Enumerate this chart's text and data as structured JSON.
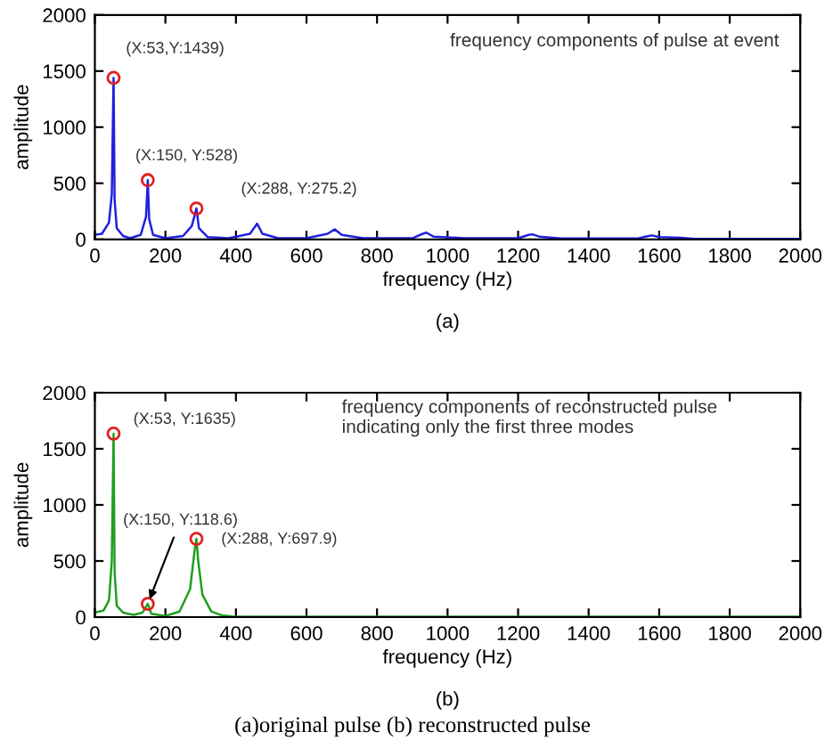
{
  "chart_data": [
    {
      "type": "line",
      "xlabel": "frequency (Hz)",
      "ylabel": "amplitude",
      "xlim": [
        0,
        2000
      ],
      "ylim": [
        0,
        2000
      ],
      "xticks": [
        0,
        200,
        400,
        600,
        800,
        1000,
        1200,
        1400,
        1600,
        1800,
        2000
      ],
      "yticks": [
        0,
        500,
        1000,
        1500,
        2000
      ],
      "grid": false,
      "legend": false,
      "series": [
        {
          "color": "#2020e0",
          "x": [
            0,
            20,
            40,
            48,
            53,
            56,
            62,
            80,
            100,
            130,
            145,
            150,
            154,
            165,
            200,
            250,
            275,
            288,
            295,
            320,
            380,
            440,
            460,
            475,
            520,
            600,
            660,
            680,
            700,
            760,
            900,
            930,
            940,
            960,
            1050,
            1200,
            1230,
            1240,
            1260,
            1320,
            1540,
            1570,
            1580,
            1600,
            1660,
            1700,
            2000
          ],
          "values": [
            40,
            50,
            150,
            400,
            1439,
            350,
            100,
            30,
            10,
            40,
            200,
            528,
            180,
            40,
            10,
            30,
            120,
            275.2,
            100,
            20,
            10,
            50,
            140,
            50,
            10,
            10,
            50,
            90,
            40,
            10,
            10,
            50,
            60,
            25,
            10,
            10,
            40,
            45,
            25,
            8,
            8,
            30,
            35,
            20,
            15,
            5,
            5
          ]
        },
        {
          "type": "scatter",
          "marker": "circle",
          "color": "#e02020",
          "x": [
            53,
            150,
            288
          ],
          "values": [
            1439,
            528,
            275.2
          ]
        }
      ],
      "annotations": [
        {
          "text": "(X:53,Y:1439)",
          "x": 53,
          "y": 1439
        },
        {
          "text": "(X:150, Y:528)",
          "x": 150,
          "y": 528
        },
        {
          "text": "(X:288, Y:275.2)",
          "x": 288,
          "y": 275.2
        },
        "frequency components of pulse at event",
        "(a)"
      ]
    },
    {
      "type": "line",
      "xlabel": "frequency (Hz)",
      "ylabel": "amplitude",
      "xlim": [
        0,
        2000
      ],
      "ylim": [
        0,
        2000
      ],
      "xticks": [
        0,
        200,
        400,
        600,
        800,
        1000,
        1200,
        1400,
        1600,
        1800,
        2000
      ],
      "yticks": [
        0,
        500,
        1000,
        1500,
        2000
      ],
      "grid": false,
      "legend": false,
      "series": [
        {
          "color": "#20a020",
          "x": [
            0,
            25,
            40,
            48,
            53,
            56,
            62,
            80,
            110,
            135,
            150,
            160,
            200,
            240,
            270,
            283,
            288,
            293,
            305,
            330,
            360,
            400,
            2000
          ],
          "values": [
            40,
            60,
            150,
            500,
            1635,
            400,
            100,
            40,
            20,
            40,
            118.6,
            30,
            10,
            50,
            250,
            600,
            697.9,
            500,
            200,
            50,
            15,
            3,
            3
          ]
        },
        {
          "type": "scatter",
          "marker": "circle",
          "color": "#e02020",
          "x": [
            53,
            150,
            288
          ],
          "values": [
            1635,
            118.6,
            697.9
          ]
        }
      ],
      "annotations": [
        {
          "text": "(X:53, Y:1635)",
          "x": 53,
          "y": 1635
        },
        {
          "text": "(X:150, Y:118.6)",
          "x": 150,
          "y": 118.6
        },
        {
          "text": "(X:288, Y:697.9)",
          "x": 288,
          "y": 697.9
        },
        "frequency components of reconstructed pulse\nindicating only the first three modes",
        "(b)",
        "(a)original pulse (b) reconstructed pulse"
      ]
    }
  ]
}
